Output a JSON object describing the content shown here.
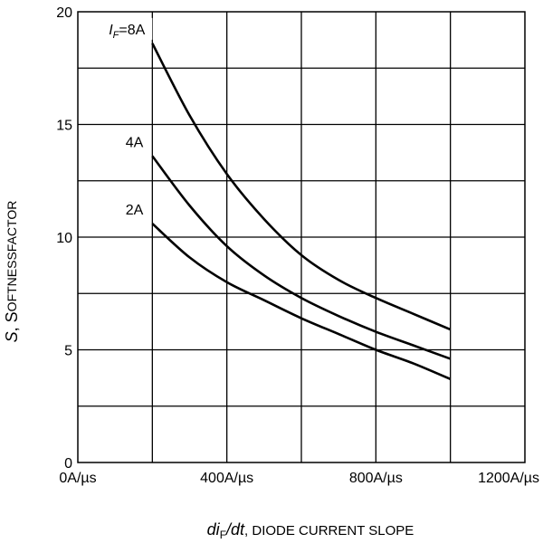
{
  "chart_data": {
    "type": "line",
    "title": "",
    "xlabel": {
      "main": "di",
      "sub": "F",
      "tail": "/dt",
      "desc": ", DIODE CURRENT SLOPE"
    },
    "ylabel": {
      "main": "S",
      "desc_first": ", S",
      "desc_rest": "OFTNESSFACTOR"
    },
    "xlim": [
      0,
      1200
    ],
    "ylim": [
      0,
      20
    ],
    "x_ticks": [
      {
        "value": 0,
        "label": "0A/µs"
      },
      {
        "value": 400,
        "label": "400A/µs"
      },
      {
        "value": 800,
        "label": "800A/µs"
      },
      {
        "value": 1200,
        "label": "1200A/µs"
      }
    ],
    "y_ticks": [
      {
        "value": 0,
        "label": "0"
      },
      {
        "value": 5,
        "label": "5"
      },
      {
        "value": 10,
        "label": "10"
      },
      {
        "value": 15,
        "label": "15"
      },
      {
        "value": 20,
        "label": "20"
      }
    ],
    "grid": true,
    "grid_x_step": 200,
    "grid_y_step": 2.5,
    "series": [
      {
        "name": "8A",
        "label_prefix": "I",
        "label_sub": "F",
        "label_text": "=8A",
        "x": [
          200,
          300,
          400,
          500,
          600,
          700,
          800,
          900,
          1000
        ],
        "y": [
          18.6,
          15.4,
          12.8,
          10.8,
          9.2,
          8.1,
          7.3,
          6.6,
          5.9
        ]
      },
      {
        "name": "4A",
        "label_text": "4A",
        "x": [
          200,
          300,
          400,
          500,
          600,
          700,
          800,
          900,
          1000
        ],
        "y": [
          13.6,
          11.4,
          9.6,
          8.3,
          7.3,
          6.5,
          5.8,
          5.2,
          4.6
        ]
      },
      {
        "name": "2A",
        "label_text": "2A",
        "x": [
          200,
          300,
          400,
          500,
          600,
          700,
          800,
          900,
          1000
        ],
        "y": [
          10.6,
          9.1,
          8.0,
          7.2,
          6.4,
          5.7,
          5.0,
          4.4,
          3.7
        ]
      }
    ]
  }
}
